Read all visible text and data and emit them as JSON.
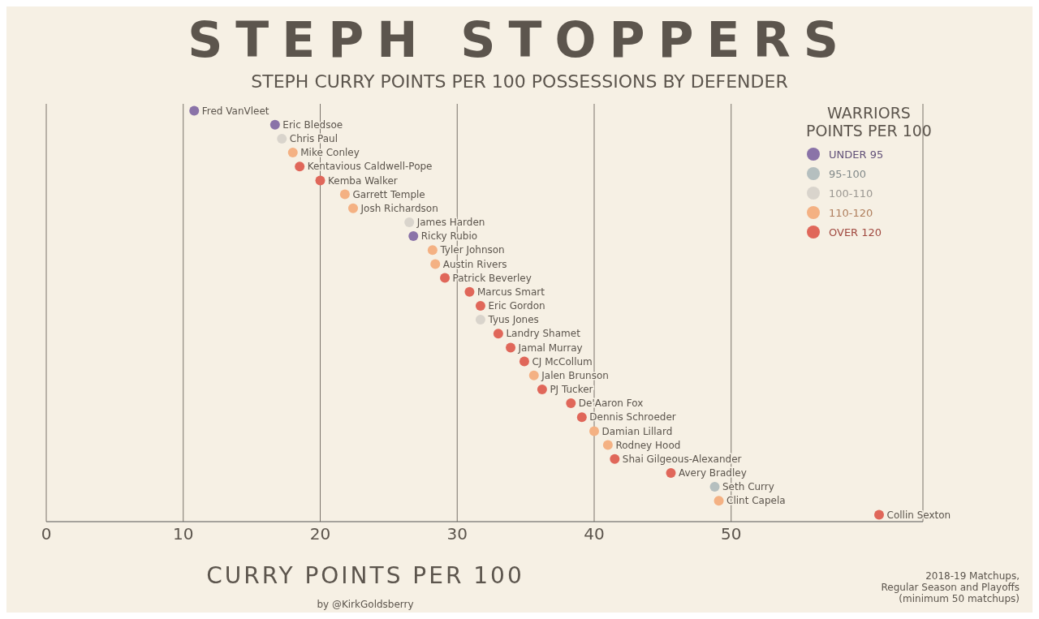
{
  "chart_data": {
    "type": "scatter",
    "title": "STEPH STOPPERS",
    "subtitle": "STEPH CURRY POINTS PER 100 POSSESSIONS BY DEFENDER",
    "xlabel": "CURRY POINTS PER 100",
    "legend_title": "WARRIORS\nPOINTS PER 100",
    "orientation": "horizontal",
    "categories": [
      "Fred VanVleet",
      "Eric Bledsoe",
      "Chris Paul",
      "Mike Conley",
      "Kentavious Caldwell-Pope",
      "Kemba Walker",
      "Garrett Temple",
      "Josh Richardson",
      "James Harden",
      "Ricky Rubio",
      "Tyler Johnson",
      "Austin Rivers",
      "Patrick Beverley",
      "Marcus Smart",
      "Eric Gordon",
      "Tyus Jones",
      "Landry Shamet",
      "Jamal Murray",
      "CJ McCollum",
      "Jalen Brunson",
      "PJ Tucker",
      "De'Aaron Fox",
      "Dennis Schroeder",
      "Damian Lillard",
      "Rodney Hood",
      "Shai Gilgeous-Alexander",
      "Avery Bradley",
      "Seth Curry",
      "Clint Capela",
      "Collin Sexton"
    ],
    "series": [
      {
        "name": "UNDER 95",
        "color": "#8a73a8",
        "values": [
          10.8,
          16.7,
          null,
          null,
          null,
          null,
          null,
          null,
          null,
          26.8,
          null,
          null,
          null,
          null,
          null,
          null,
          null,
          null,
          null,
          null,
          null,
          null,
          null,
          null,
          null,
          null,
          null,
          null,
          null,
          null
        ]
      },
      {
        "name": "95-100",
        "color": "#b5bfbf",
        "values": [
          null,
          null,
          null,
          null,
          null,
          null,
          null,
          null,
          null,
          null,
          null,
          null,
          null,
          null,
          null,
          null,
          null,
          null,
          null,
          null,
          null,
          null,
          null,
          null,
          null,
          null,
          null,
          48.8,
          null,
          null
        ]
      },
      {
        "name": "100-110",
        "color": "#d9d4cc",
        "values": [
          null,
          null,
          17.2,
          null,
          null,
          null,
          null,
          null,
          26.5,
          null,
          null,
          null,
          null,
          null,
          null,
          31.7,
          null,
          null,
          null,
          null,
          null,
          null,
          null,
          null,
          null,
          null,
          null,
          null,
          null,
          null
        ]
      },
      {
        "name": "110-120",
        "color": "#f4b183",
        "values": [
          null,
          null,
          null,
          18.0,
          null,
          null,
          21.8,
          22.4,
          null,
          null,
          28.2,
          28.4,
          null,
          null,
          null,
          null,
          null,
          null,
          null,
          35.6,
          null,
          null,
          null,
          40.0,
          41.0,
          null,
          null,
          null,
          49.1,
          null
        ]
      },
      {
        "name": "OVER 120",
        "color": "#e0675a",
        "values": [
          null,
          null,
          null,
          null,
          18.5,
          20.0,
          null,
          null,
          null,
          null,
          null,
          null,
          29.1,
          30.9,
          31.7,
          null,
          33.0,
          33.9,
          34.9,
          null,
          36.2,
          38.3,
          39.1,
          null,
          null,
          41.5,
          45.6,
          null,
          null,
          60.8
        ]
      }
    ],
    "xlim": [
      0,
      64
    ],
    "xticks": [
      0,
      10,
      20,
      30,
      40,
      50
    ],
    "grid": "x",
    "legend": "top right",
    "tick_labels": "x",
    "marker": "circle",
    "annotations": [
      "2018-19 Matchups,\nRegular Season and Playoffs\n(minimum 50 matchups)",
      "by @KirkGoldsberry"
    ]
  }
}
